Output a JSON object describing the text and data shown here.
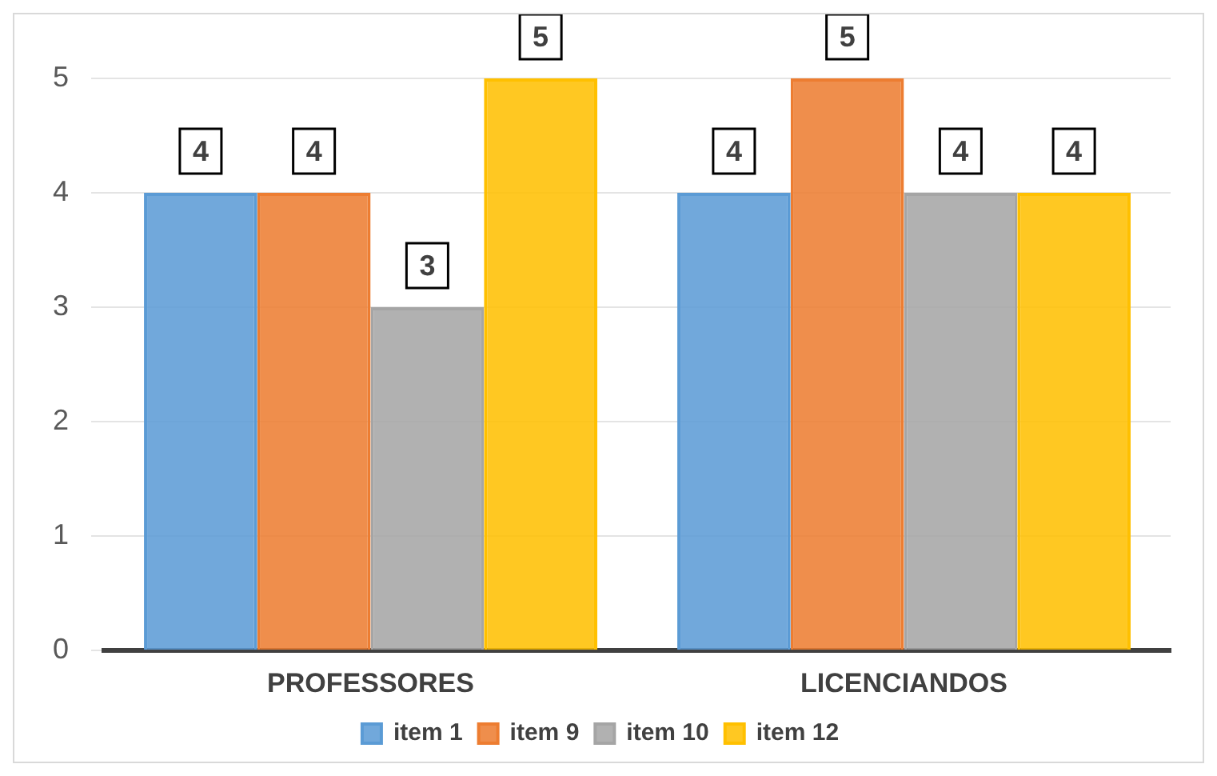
{
  "chart_data": {
    "type": "bar",
    "categories": [
      "PROFESSORES",
      "LICENCIANDOS"
    ],
    "series": [
      {
        "name": "item 1",
        "color": "#5b9bd5",
        "values": [
          4,
          4
        ]
      },
      {
        "name": "item 9",
        "color": "#ed7d31",
        "values": [
          4,
          5
        ]
      },
      {
        "name": "item 10",
        "color": "#a5a5a5",
        "values": [
          3,
          4
        ]
      },
      {
        "name": "item 12",
        "color": "#ffc000",
        "values": [
          5,
          4
        ]
      }
    ],
    "ylim": [
      0,
      5
    ],
    "yticks": [
      0,
      1,
      2,
      3,
      4,
      5
    ],
    "grid": "y",
    "legend": "bottom",
    "data_labels": true
  }
}
